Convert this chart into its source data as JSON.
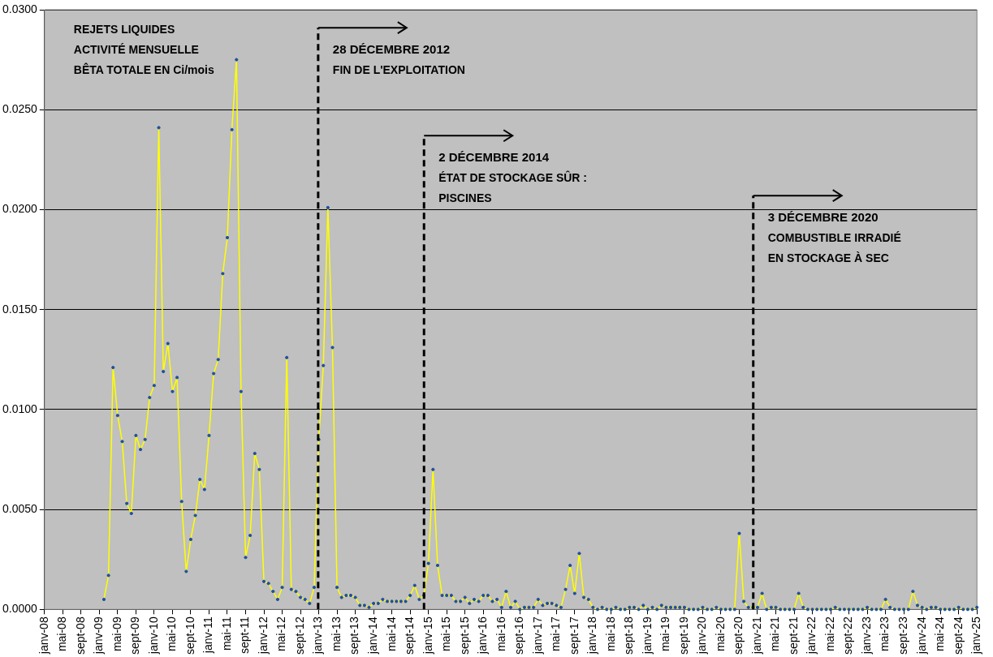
{
  "chart_data": {
    "type": "line",
    "annotations": [
      "REJETS LIQUIDES\nACTIVITÉ MENSUELLE\nBÊTA TOTALE EN Ci/mois"
    ],
    "x": [
      "2009-02",
      "2009-03",
      "2009-04",
      "2009-05",
      "2009-06",
      "2009-07",
      "2009-08",
      "2009-09",
      "2009-10",
      "2009-11",
      "2009-12",
      "2010-01",
      "2010-02",
      "2010-03",
      "2010-04",
      "2010-05",
      "2010-06",
      "2010-07",
      "2010-08",
      "2010-09",
      "2010-10",
      "2010-11",
      "2010-12",
      "2011-01",
      "2011-02",
      "2011-03",
      "2011-04",
      "2011-05",
      "2011-06",
      "2011-07",
      "2011-08",
      "2011-09",
      "2011-10",
      "2011-11",
      "2011-12",
      "2012-01",
      "2012-02",
      "2012-03",
      "2012-04",
      "2012-05",
      "2012-06",
      "2012-07",
      "2012-08",
      "2012-09",
      "2012-10",
      "2012-11",
      "2012-12",
      "2013-01",
      "2013-02",
      "2013-03",
      "2013-04",
      "2013-05",
      "2013-06",
      "2013-07",
      "2013-08",
      "2013-09",
      "2013-10",
      "2013-11",
      "2013-12",
      "2014-01",
      "2014-02",
      "2014-03",
      "2014-04",
      "2014-05",
      "2014-06",
      "2014-07",
      "2014-08",
      "2014-09",
      "2014-10",
      "2014-11",
      "2014-12",
      "2015-01",
      "2015-02",
      "2015-03",
      "2015-04",
      "2015-05",
      "2015-06",
      "2015-07",
      "2015-08",
      "2015-09",
      "2015-10",
      "2015-11",
      "2015-12",
      "2016-01",
      "2016-02",
      "2016-03",
      "2016-04",
      "2016-05",
      "2016-06",
      "2016-07",
      "2016-08",
      "2016-09",
      "2016-10",
      "2016-11",
      "2016-12",
      "2017-01",
      "2017-02",
      "2017-03",
      "2017-04",
      "2017-05",
      "2017-06",
      "2017-07",
      "2017-08",
      "2017-09",
      "2017-10",
      "2017-11",
      "2017-12",
      "2018-01",
      "2018-02",
      "2018-03",
      "2018-04",
      "2018-05",
      "2018-06",
      "2018-07",
      "2018-08",
      "2018-09",
      "2018-10",
      "2018-11",
      "2018-12",
      "2019-01",
      "2019-02",
      "2019-03",
      "2019-04",
      "2019-05",
      "2019-06",
      "2019-07",
      "2019-08",
      "2019-09",
      "2019-10",
      "2019-11",
      "2019-12",
      "2020-01",
      "2020-02",
      "2020-03",
      "2020-04",
      "2020-05",
      "2020-06",
      "2020-07",
      "2020-08",
      "2020-09",
      "2020-10",
      "2020-11",
      "2020-12",
      "2021-01",
      "2021-02",
      "2021-03",
      "2021-04",
      "2021-05",
      "2021-06",
      "2021-07",
      "2021-08",
      "2021-09",
      "2021-10",
      "2021-11",
      "2021-12",
      "2022-01",
      "2022-02",
      "2022-03",
      "2022-04",
      "2022-05",
      "2022-06",
      "2022-07",
      "2022-08",
      "2022-09",
      "2022-10",
      "2022-11",
      "2022-12",
      "2023-01",
      "2023-02",
      "2023-03",
      "2023-04",
      "2023-05",
      "2023-06",
      "2023-07",
      "2023-08",
      "2023-09",
      "2023-10",
      "2023-11",
      "2023-12",
      "2024-01",
      "2024-02",
      "2024-03",
      "2024-04",
      "2024-05",
      "2024-06",
      "2024-07",
      "2024-08",
      "2024-09",
      "2024-10",
      "2024-11",
      "2024-12",
      "2025-01"
    ],
    "series": [
      {
        "color": "#ffff00",
        "values": [
          0.0005,
          0.0017,
          0.0121,
          0.0097,
          0.0084,
          0.0053,
          0.0048,
          0.0087,
          0.008,
          0.0085,
          0.0106,
          0.0112,
          0.0241,
          0.0119,
          0.0133,
          0.0109,
          0.0116,
          0.0054,
          0.0019,
          0.0035,
          0.0047,
          0.0065,
          0.006,
          0.0087,
          0.0118,
          0.0125,
          0.0168,
          0.0186,
          0.024,
          0.0275,
          0.0109,
          0.0026,
          0.0037,
          0.0078,
          0.007,
          0.0014,
          0.0013,
          0.0009,
          0.0005,
          0.0011,
          0.0126,
          0.001,
          0.0009,
          0.0006,
          0.0005,
          0.0003,
          0.0011,
          0.0085,
          0.0122,
          0.0201,
          0.0131,
          0.0011,
          0.0006,
          0.0007,
          0.0007,
          0.0006,
          0.0002,
          0.0002,
          0.0001,
          0.0003,
          0.0003,
          0.0005,
          0.0004,
          0.0004,
          0.0004,
          0.0004,
          0.0004,
          0.0007,
          0.0012,
          0.0005,
          0.0007,
          0.0023,
          0.007,
          0.0022,
          0.0007,
          0.0007,
          0.0007,
          0.0004,
          0.0004,
          0.0006,
          0.0003,
          0.0005,
          0.0004,
          0.0007,
          0.0007,
          0.0004,
          0.0005,
          0.0001,
          0.0009,
          0.0001,
          0.0004,
          0,
          0.0001,
          0.0001,
          0.0001,
          0.0005,
          0.0002,
          0.0003,
          0.0003,
          0.0002,
          0.0001,
          0.001,
          0.0022,
          0.0008,
          0.0028,
          0.0006,
          0.0005,
          0.0001,
          0,
          0.0001,
          0,
          0,
          0.0001,
          0,
          0,
          0.0001,
          0.0001,
          0,
          0.0002,
          0,
          0.0001,
          0,
          0.0002,
          0.0001,
          0.0001,
          0.0001,
          0.0001,
          0.0001,
          0,
          0,
          0,
          0.0001,
          0,
          0,
          0.0001,
          0,
          0,
          0,
          0,
          0.0038,
          0.0004,
          0.0001,
          0.0001,
          0.0001,
          0.0008,
          0,
          0.0001,
          0.0001,
          0,
          0,
          0,
          0,
          0.0008,
          0.0001,
          0,
          0,
          0,
          0,
          0,
          0,
          0.0001,
          0,
          0,
          0,
          0,
          0,
          0,
          0.0001,
          0,
          0,
          0,
          0.0005,
          0.0001,
          0,
          0,
          0,
          0,
          0.0009,
          0.0002,
          0.0001,
          0,
          0.0001,
          0.0001,
          0,
          0,
          0,
          0,
          0.0001,
          0,
          0,
          0,
          0.0001
        ]
      }
    ],
    "xlim": [
      "2008-01",
      "2025-01"
    ],
    "xticks": [
      {
        "value": "2008-01",
        "label": "janv-08"
      },
      {
        "value": "2008-05",
        "label": "mai-08"
      },
      {
        "value": "2008-09",
        "label": "sept-08"
      },
      {
        "value": "2009-01",
        "label": "janv-09"
      },
      {
        "value": "2009-05",
        "label": "mai-09"
      },
      {
        "value": "2009-09",
        "label": "sept-09"
      },
      {
        "value": "2010-01",
        "label": "janv-10"
      },
      {
        "value": "2010-05",
        "label": "mai-10"
      },
      {
        "value": "2010-09",
        "label": "sept-10"
      },
      {
        "value": "2011-01",
        "label": "janv-11"
      },
      {
        "value": "2011-05",
        "label": "mai-11"
      },
      {
        "value": "2011-09",
        "label": "sept-11"
      },
      {
        "value": "2012-01",
        "label": "janv-12"
      },
      {
        "value": "2012-05",
        "label": "mai-12"
      },
      {
        "value": "2012-09",
        "label": "sept-12"
      },
      {
        "value": "2013-01",
        "label": "janv-13"
      },
      {
        "value": "2013-05",
        "label": "mai-13"
      },
      {
        "value": "2013-09",
        "label": "sept-13"
      },
      {
        "value": "2014-01",
        "label": "janv-14"
      },
      {
        "value": "2014-05",
        "label": "mai-14"
      },
      {
        "value": "2014-09",
        "label": "sept-14"
      },
      {
        "value": "2015-01",
        "label": "janv-15"
      },
      {
        "value": "2015-05",
        "label": "mai-15"
      },
      {
        "value": "2015-09",
        "label": "sept-15"
      },
      {
        "value": "2016-01",
        "label": "janv-16"
      },
      {
        "value": "2016-05",
        "label": "mai-16"
      },
      {
        "value": "2016-09",
        "label": "sept-16"
      },
      {
        "value": "2017-01",
        "label": "janv-17"
      },
      {
        "value": "2017-05",
        "label": "mai-17"
      },
      {
        "value": "2017-09",
        "label": "sept-17"
      },
      {
        "value": "2018-01",
        "label": "janv-18"
      },
      {
        "value": "2018-05",
        "label": "mai-18"
      },
      {
        "value": "2018-09",
        "label": "sept-18"
      },
      {
        "value": "2019-01",
        "label": "janv-19"
      },
      {
        "value": "2019-05",
        "label": "mai-19"
      },
      {
        "value": "2019-09",
        "label": "sept-19"
      },
      {
        "value": "2020-01",
        "label": "janv-20"
      },
      {
        "value": "2020-05",
        "label": "mai-20"
      },
      {
        "value": "2020-09",
        "label": "sept-20"
      },
      {
        "value": "2021-01",
        "label": "janv-21"
      },
      {
        "value": "2021-05",
        "label": "mai-21"
      },
      {
        "value": "2021-09",
        "label": "sept-21"
      },
      {
        "value": "2022-01",
        "label": "janv-22"
      },
      {
        "value": "2022-05",
        "label": "mai-22"
      },
      {
        "value": "2022-09",
        "label": "sept-22"
      },
      {
        "value": "2023-01",
        "label": "janv-23"
      },
      {
        "value": "2023-05",
        "label": "mai-23"
      },
      {
        "value": "2023-09",
        "label": "sept-23"
      },
      {
        "value": "2024-01",
        "label": "janv-24"
      },
      {
        "value": "2024-05",
        "label": "mai-24"
      },
      {
        "value": "2024-09",
        "label": "sept-24"
      },
      {
        "value": "2025-01",
        "label": "janv-25"
      }
    ],
    "ylim": [
      0,
      0.03
    ],
    "yticks": [
      {
        "value": 0,
        "label": "0.0000"
      },
      {
        "value": 0.005,
        "label": "0.0050"
      },
      {
        "value": 0.01,
        "label": "0.0100"
      },
      {
        "value": 0.015,
        "label": "0.0150"
      },
      {
        "value": 0.02,
        "label": "0.0200"
      },
      {
        "value": 0.025,
        "label": "0.0250"
      },
      {
        "value": 0.03,
        "label": "0.0300"
      }
    ],
    "ref_lines": [
      {
        "axis": "x",
        "value": "2012-12-28",
        "label": "28 DÉCEMBRE 2012\nFIN DE L'EXPLOITATION",
        "color": "#000000",
        "line_style": "dashed"
      },
      {
        "axis": "x",
        "value": "2014-12-02",
        "label": "2 DÉCEMBRE 2014\nÉTAT DE STOCKAGE SÛR :\nPISCINES",
        "color": "#000000",
        "line_style": "dashed"
      },
      {
        "axis": "x",
        "value": "2020-12-03",
        "label": "3 DÉCEMBRE 2020\nCOMBUSTIBLE IRRADIÉ\nEN STOCKAGE À SEC",
        "color": "#000000",
        "line_style": "dashed"
      }
    ],
    "grid": "y",
    "legend": false,
    "marker": "circle",
    "line_style": "solid"
  }
}
